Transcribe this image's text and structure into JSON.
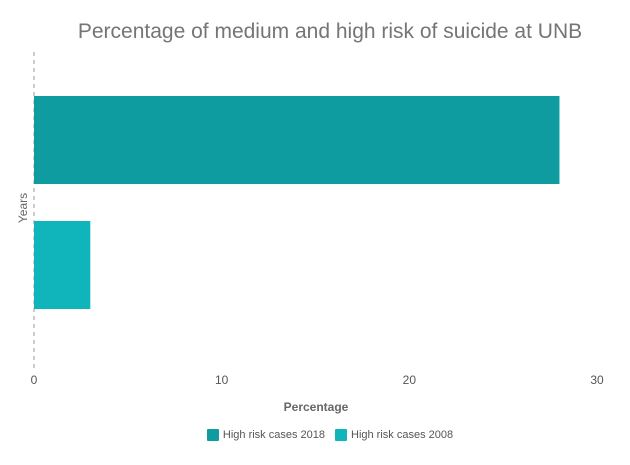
{
  "chart_data": {
    "type": "bar",
    "orientation": "horizontal",
    "title": "Percentage of medium and high risk of suicide at UNB",
    "xlabel": "Percentage",
    "ylabel": "Years",
    "xlim": [
      0,
      30
    ],
    "xticks": [
      0,
      10,
      20,
      30
    ],
    "grid": false,
    "legend_position": "bottom",
    "series": [
      {
        "name": "High risk cases 2018",
        "value": 28,
        "color": "#0e9ca1"
      },
      {
        "name": "High risk cases 2008",
        "value": 3,
        "color": "#0fb5ba"
      }
    ]
  }
}
